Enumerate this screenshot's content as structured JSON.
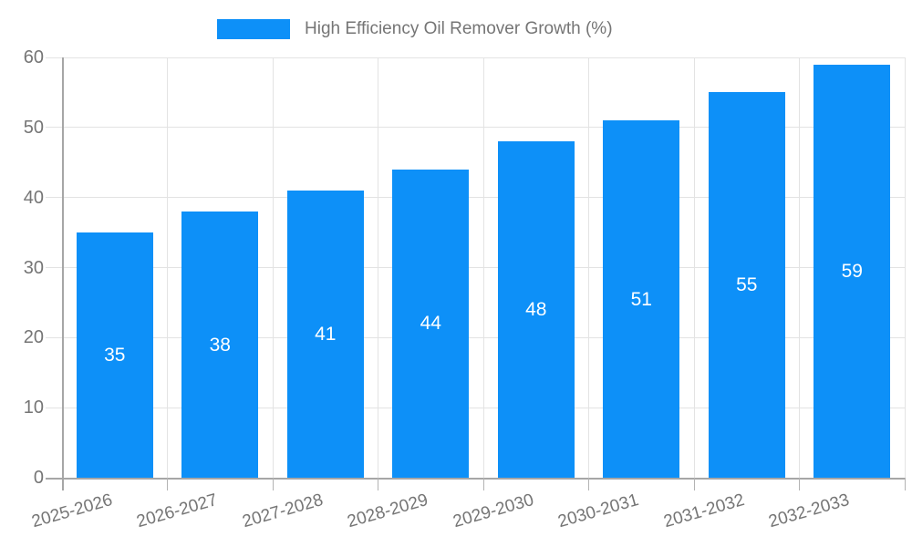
{
  "legend": {
    "label": "High Efficiency Oil Remover Growth (%)"
  },
  "chart_data": {
    "type": "bar",
    "title": "High Efficiency Oil Remover Growth (%)",
    "categories": [
      "2025-2026",
      "2026-2027",
      "2027-2028",
      "2028-2029",
      "2029-2030",
      "2030-2031",
      "2031-2032",
      "2032-2033"
    ],
    "values": [
      35,
      38,
      41,
      44,
      48,
      51,
      55,
      59
    ],
    "xlabel": "",
    "ylabel": "",
    "ylim": [
      0,
      60
    ],
    "yticks": [
      0,
      10,
      20,
      30,
      40,
      50,
      60
    ],
    "grid": true,
    "legend_position": "top",
    "colors": {
      "bar": "#0d90f8",
      "value_label": "#ffffff",
      "axis": "#a6a6a6",
      "gridline": "#e3e3e3",
      "tick": "#b3b3b3",
      "text": "#757575"
    }
  }
}
